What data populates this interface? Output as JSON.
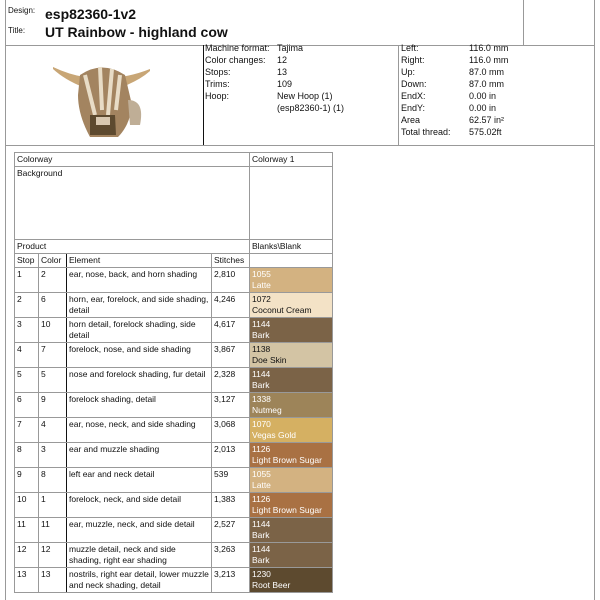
{
  "header": {
    "design_label": "Design:",
    "design": "esp82360-1v2",
    "title_label": "Title:",
    "title": "UT Rainbow - highland cow"
  },
  "info": {
    "left": [
      {
        "label": "Machine format:",
        "value": "Tajima"
      },
      {
        "label": "Color changes:",
        "value": "12"
      },
      {
        "label": "Stops:",
        "value": "13"
      },
      {
        "label": "Trims:",
        "value": "109"
      },
      {
        "label": "Hoop:",
        "value": "New Hoop (1)",
        "value2": "(esp82360-1) (1)"
      }
    ],
    "right": [
      {
        "label": "Left:",
        "value": "116.0 mm"
      },
      {
        "label": "Right:",
        "value": "116.0 mm"
      },
      {
        "label": "Up:",
        "value": "87.0 mm"
      },
      {
        "label": "Down:",
        "value": "87.0 mm"
      },
      {
        "label": "EndX:",
        "value": "0.00 in"
      },
      {
        "label": "EndY:",
        "value": "0.00 in"
      },
      {
        "label": "Area",
        "value": "62.57 in²"
      },
      {
        "label": "Total thread:",
        "value": "575.02ft"
      }
    ]
  },
  "table": {
    "colorway_label": "Colorway",
    "colorway_value": "Colorway 1",
    "background_label": "Background",
    "product_label": "Product",
    "product_value": "Blanks\\Blank",
    "headers": [
      "Stop",
      "Color",
      "Element",
      "Stitches"
    ],
    "rows": [
      {
        "stop": "1",
        "color": "2",
        "element": "ear, nose, back, and horn shading",
        "stitches": "2,810",
        "code": "1055",
        "name": "Latte",
        "hex": "#d3b281",
        "text": "#fff"
      },
      {
        "stop": "2",
        "color": "6",
        "element": "horn, ear, forelock, and side shading, detail",
        "stitches": "4,246",
        "code": "1072",
        "name": "Coconut Cream",
        "hex": "#f3e2c6",
        "text": "#111"
      },
      {
        "stop": "3",
        "color": "10",
        "element": "horn detail, forelock shading, side detail",
        "stitches": "4,617",
        "code": "1144",
        "name": "Bark",
        "hex": "#7b6347",
        "text": "#fff"
      },
      {
        "stop": "4",
        "color": "7",
        "element": "forelock, nose, and side shading",
        "stitches": "3,867",
        "code": "1138",
        "name": "Doe Skin",
        "hex": "#d3c4a4",
        "text": "#111"
      },
      {
        "stop": "5",
        "color": "5",
        "element": "nose and forelock shading, fur detail",
        "stitches": "2,328",
        "code": "1144",
        "name": "Bark",
        "hex": "#7b6347",
        "text": "#fff"
      },
      {
        "stop": "6",
        "color": "9",
        "element": "forelock shading, detail",
        "stitches": "3,127",
        "code": "1338",
        "name": "Nutmeg",
        "hex": "#9d8459",
        "text": "#fff"
      },
      {
        "stop": "7",
        "color": "4",
        "element": "ear, nose, neck, and side shading",
        "stitches": "3,068",
        "code": "1070",
        "name": "Vegas Gold",
        "hex": "#d5b062",
        "text": "#fff"
      },
      {
        "stop": "8",
        "color": "3",
        "element": "ear and muzzle shading",
        "stitches": "2,013",
        "code": "1126",
        "name": "Light Brown Sugar",
        "hex": "#a97143",
        "text": "#fff"
      },
      {
        "stop": "9",
        "color": "8",
        "element": "left ear and neck detail",
        "stitches": "539",
        "code": "1055",
        "name": "Latte",
        "hex": "#d3b281",
        "text": "#fff"
      },
      {
        "stop": "10",
        "color": "1",
        "element": "forelock, neck, and side detail",
        "stitches": "1,383",
        "code": "1126",
        "name": "Light Brown Sugar",
        "hex": "#a97143",
        "text": "#fff"
      },
      {
        "stop": "11",
        "color": "11",
        "element": "ear, muzzle, neck, and side detail",
        "stitches": "2,527",
        "code": "1144",
        "name": "Bark",
        "hex": "#7b6347",
        "text": "#fff"
      },
      {
        "stop": "12",
        "color": "12",
        "element": "muzzle detail, neck and side shading, right ear shading",
        "stitches": "3,263",
        "code": "1144",
        "name": "Bark",
        "hex": "#7b6347",
        "text": "#fff"
      },
      {
        "stop": "13",
        "color": "13",
        "element": "nostrils, right ear detail, lower muzzle and neck shading, detail",
        "stitches": "3,213",
        "code": "1230",
        "name": "Root Beer",
        "hex": "#5d4a2f",
        "text": "#fff"
      }
    ]
  }
}
